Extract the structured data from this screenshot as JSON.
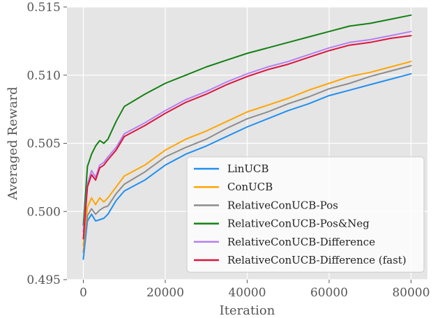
{
  "chart_data": {
    "type": "line",
    "title": "",
    "xlabel": "Iteration",
    "ylabel": "Averaged Reward",
    "xlim": [
      -4000,
      84000
    ],
    "ylim": [
      0.495,
      0.515
    ],
    "xticks": [
      0,
      20000,
      40000,
      60000,
      80000
    ],
    "xtick_labels": [
      "0",
      "20000",
      "40000",
      "60000",
      "80000"
    ],
    "yticks": [
      0.495,
      0.5,
      0.505,
      0.51,
      0.515
    ],
    "ytick_labels": [
      "0.495",
      "0.500",
      "0.505",
      "0.510",
      "0.515"
    ],
    "grid": true,
    "legend_position": "lower right",
    "x": [
      0,
      1000,
      2000,
      3000,
      4000,
      5000,
      6000,
      8000,
      10000,
      15000,
      20000,
      25000,
      30000,
      35000,
      40000,
      45000,
      50000,
      55000,
      60000,
      65000,
      70000,
      75000,
      80000
    ],
    "series": [
      {
        "name": "LinUCB",
        "color": "#1f8ff0",
        "values": [
          0.4965,
          0.4993,
          0.4998,
          0.4993,
          0.4994,
          0.4995,
          0.4998,
          0.5008,
          0.5015,
          0.5023,
          0.5034,
          0.5042,
          0.5048,
          0.5055,
          0.5062,
          0.5068,
          0.5074,
          0.5079,
          0.5085,
          0.5089,
          0.5093,
          0.5097,
          0.5101
        ]
      },
      {
        "name": "ConUCB",
        "color": "#ffa500",
        "values": [
          0.4975,
          0.5003,
          0.501,
          0.5005,
          0.501,
          0.5007,
          0.501,
          0.5018,
          0.5026,
          0.5034,
          0.5045,
          0.5053,
          0.5059,
          0.5066,
          0.5073,
          0.5078,
          0.5083,
          0.5089,
          0.5094,
          0.5099,
          0.5102,
          0.5106,
          0.511
        ]
      },
      {
        "name": "RelativeConUCB-Pos",
        "color": "#8c8c8c",
        "values": [
          0.497,
          0.4997,
          0.5002,
          0.4998,
          0.5001,
          0.5003,
          0.5004,
          0.5013,
          0.502,
          0.5029,
          0.504,
          0.5047,
          0.5053,
          0.5061,
          0.5068,
          0.5073,
          0.5079,
          0.5084,
          0.509,
          0.5094,
          0.5099,
          0.5103,
          0.5107
        ]
      },
      {
        "name": "RelativeConUCB-Pos&Neg",
        "color": "#128012",
        "values": [
          0.499,
          0.5033,
          0.5042,
          0.5048,
          0.5052,
          0.505,
          0.5053,
          0.5066,
          0.5077,
          0.5086,
          0.5094,
          0.51,
          0.5106,
          0.5111,
          0.5116,
          0.512,
          0.5124,
          0.5128,
          0.5132,
          0.5136,
          0.5138,
          0.5141,
          0.5144
        ]
      },
      {
        "name": "RelativeConUCB-Difference",
        "color": "#b380f0",
        "values": [
          0.4985,
          0.502,
          0.503,
          0.5025,
          0.5034,
          0.5036,
          0.504,
          0.5047,
          0.5057,
          0.5065,
          0.5074,
          0.5082,
          0.5088,
          0.5095,
          0.5101,
          0.5106,
          0.511,
          0.5115,
          0.512,
          0.5124,
          0.5126,
          0.5129,
          0.5132
        ]
      },
      {
        "name": "RelativeConUCB-Difference (fast)",
        "color": "#dc143c",
        "values": [
          0.498,
          0.5018,
          0.5027,
          0.5023,
          0.5032,
          0.5034,
          0.5038,
          0.5045,
          0.5055,
          0.5063,
          0.5072,
          0.508,
          0.5086,
          0.5093,
          0.5099,
          0.5104,
          0.5108,
          0.5113,
          0.5118,
          0.5122,
          0.5124,
          0.5127,
          0.5129
        ]
      }
    ]
  }
}
